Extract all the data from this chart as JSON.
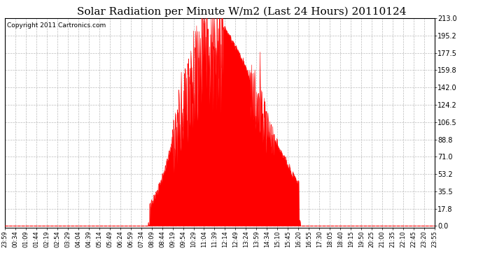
{
  "title": "Solar Radiation per Minute W/m2 (Last 24 Hours) 20110124",
  "copyright": "Copyright 2011 Cartronics.com",
  "title_fontsize": 11,
  "copyright_fontsize": 6.5,
  "background_color": "#ffffff",
  "plot_bg_color": "#ffffff",
  "fill_color": "#ff0000",
  "grid_color": "#bbbbbb",
  "yticks": [
    0.0,
    17.8,
    35.5,
    53.2,
    71.0,
    88.8,
    106.5,
    124.2,
    142.0,
    159.8,
    177.5,
    195.2,
    213.0
  ],
  "ylim": [
    -2.0,
    213.0
  ],
  "x_labels": [
    "23:59",
    "00:34",
    "01:09",
    "01:44",
    "02:19",
    "02:54",
    "03:29",
    "04:04",
    "04:39",
    "05:14",
    "05:49",
    "06:24",
    "06:59",
    "07:34",
    "08:09",
    "08:44",
    "09:19",
    "09:54",
    "10:29",
    "11:04",
    "11:39",
    "12:14",
    "12:49",
    "13:24",
    "13:59",
    "14:34",
    "15:10",
    "15:45",
    "16:20",
    "16:55",
    "17:30",
    "18:05",
    "18:40",
    "19:15",
    "19:50",
    "20:25",
    "21:00",
    "21:35",
    "22:10",
    "22:45",
    "23:20",
    "23:55"
  ],
  "sunrise_minute": 480,
  "sunset_minute": 990,
  "peak_minute": 680,
  "peak_value": 213.0,
  "second_peak_minute": 855,
  "second_peak_value": 130.0,
  "n_points": 1440
}
